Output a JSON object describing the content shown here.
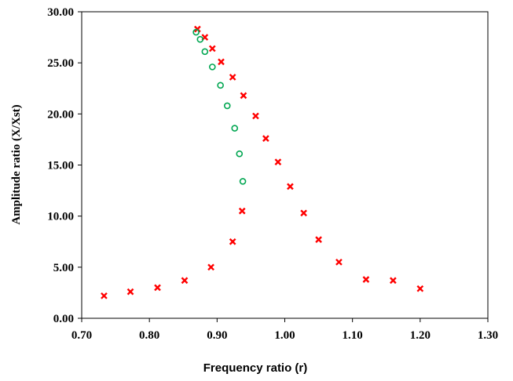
{
  "chart_data": {
    "type": "scatter",
    "title": "",
    "xlabel": "Frequency ratio (r)",
    "ylabel": "Amplitude ratio (X/Xst)",
    "xlim": [
      0.7,
      1.3
    ],
    "ylim": [
      0.0,
      30.0
    ],
    "x_ticks": [
      "0.70",
      "0.80",
      "0.90",
      "1.00",
      "1.10",
      "1.20",
      "1.30"
    ],
    "y_ticks": [
      "0.00",
      "5.00",
      "10.00",
      "15.00",
      "20.00",
      "25.00",
      "30.00"
    ],
    "grid": false,
    "legend": "none",
    "series": [
      {
        "marker": "x",
        "color": "#ff0000",
        "x": [
          0.733,
          0.772,
          0.812,
          0.852,
          0.891,
          0.923,
          0.937,
          0.939,
          0.923,
          0.906,
          0.893,
          0.882,
          0.871,
          0.957,
          0.972,
          0.99,
          1.008,
          1.028,
          1.05,
          1.08,
          1.12,
          1.16,
          1.2
        ],
        "y": [
          2.2,
          2.6,
          3.0,
          3.7,
          5.0,
          7.5,
          10.5,
          21.8,
          23.6,
          25.1,
          26.4,
          27.5,
          28.3,
          19.8,
          17.6,
          15.3,
          12.9,
          10.3,
          7.7,
          5.5,
          3.8,
          3.7,
          2.9
        ]
      },
      {
        "marker": "o",
        "color": "#00a651",
        "x": [
          0.869,
          0.875,
          0.882,
          0.893,
          0.905,
          0.915,
          0.926,
          0.933,
          0.938
        ],
        "y": [
          28.0,
          27.3,
          26.1,
          24.6,
          22.8,
          20.8,
          18.6,
          16.1,
          13.4
        ]
      }
    ]
  }
}
